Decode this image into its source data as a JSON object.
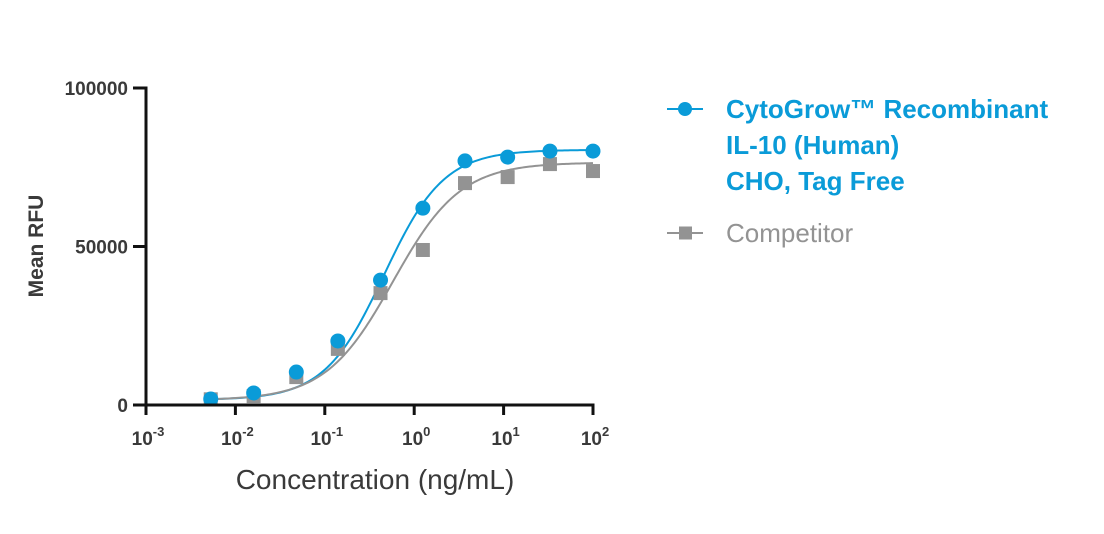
{
  "chart_data": {
    "type": "scatter",
    "title": "",
    "xlabel": "Concentration (ng/mL)",
    "ylabel": "Mean RFU",
    "xscale": "log",
    "xlim": [
      0.001,
      100
    ],
    "ylim": [
      0,
      100000
    ],
    "grid": false,
    "x_ticks": [
      {
        "base": "10",
        "exp": "-3",
        "value": 0.001
      },
      {
        "base": "10",
        "exp": "-2",
        "value": 0.01
      },
      {
        "base": "10",
        "exp": "-1",
        "value": 0.1
      },
      {
        "base": "10",
        "exp": "0",
        "value": 1
      },
      {
        "base": "10",
        "exp": "1",
        "value": 10
      },
      {
        "base": "10",
        "exp": "2",
        "value": 100
      }
    ],
    "y_ticks": [
      {
        "label": "0",
        "value": 0
      },
      {
        "label": "50000",
        "value": 50000
      },
      {
        "label": "100000",
        "value": 100000
      }
    ],
    "legend_position": "right",
    "x": [
      0.0053,
      0.016,
      0.048,
      0.14,
      0.42,
      1.25,
      3.7,
      11.1,
      33,
      100
    ],
    "series": [
      {
        "name": "CytoGrow™ Recombinant IL-10 (Human) CHO, Tag Free",
        "legend_lines": [
          "CytoGrow™ Recombinant",
          "IL-10 (Human)",
          "CHO, Tag Free"
        ],
        "marker": "circle",
        "color": "#0a9bd8",
        "values": [
          1900,
          3800,
          10400,
          20200,
          39400,
          62100,
          77000,
          78200,
          80100,
          80100
        ],
        "fit": {
          "model": "4PL",
          "bottom": 1600,
          "top": 80500,
          "ec50": 0.46,
          "hill": 1.3
        }
      },
      {
        "name": "Competitor",
        "legend_lines": [
          "Competitor"
        ],
        "marker": "square",
        "color": "#939393",
        "values": [
          1800,
          2800,
          8800,
          17700,
          35300,
          48900,
          70000,
          71900,
          76000,
          73800
        ],
        "fit": {
          "model": "4PL",
          "bottom": 1500,
          "top": 76500,
          "ec50": 0.58,
          "hill": 1.15
        }
      }
    ]
  }
}
